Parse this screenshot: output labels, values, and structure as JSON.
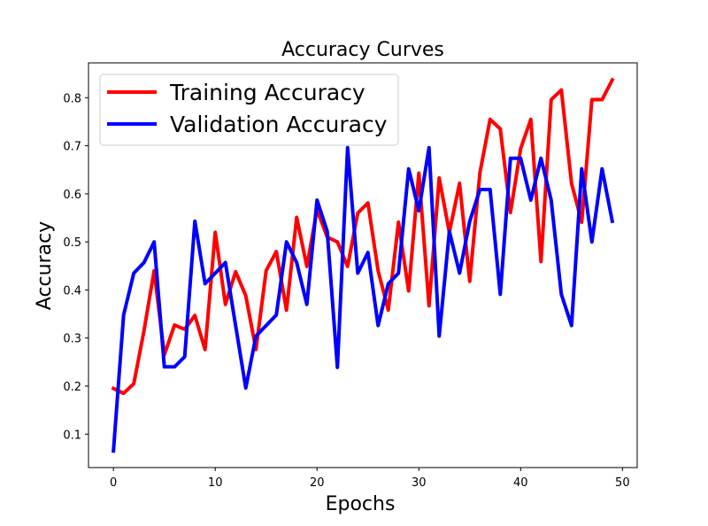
{
  "chart_data": {
    "type": "line",
    "title": "Accuracy Curves",
    "xlabel": "Epochs",
    "ylabel": "Accuracy",
    "xlim": [
      -2.45,
      51.45
    ],
    "ylim": [
      0.0305,
      0.8725
    ],
    "xticks": [
      0,
      10,
      20,
      30,
      40,
      50
    ],
    "yticks": [
      0.1,
      0.2,
      0.3,
      0.4,
      0.5,
      0.6,
      0.7,
      0.8
    ],
    "xtick_labels": [
      "0",
      "10",
      "20",
      "30",
      "40",
      "50"
    ],
    "ytick_labels": [
      "0.1",
      "0.2",
      "0.3",
      "0.4",
      "0.5",
      "0.6",
      "0.7",
      "0.8"
    ],
    "grid": false,
    "legend_position": "top-left",
    "x": [
      0,
      1,
      2,
      3,
      4,
      5,
      6,
      7,
      8,
      9,
      10,
      11,
      12,
      13,
      14,
      15,
      16,
      17,
      18,
      19,
      20,
      21,
      22,
      23,
      24,
      25,
      26,
      27,
      28,
      29,
      30,
      31,
      32,
      33,
      34,
      35,
      36,
      37,
      38,
      39,
      40,
      41,
      42,
      43,
      44,
      45,
      46,
      47,
      48,
      49
    ],
    "series": [
      {
        "name": "Training Accuracy",
        "color": "#ff0000",
        "values": [
          0.195,
          0.185,
          0.205,
          0.315,
          0.44,
          0.265,
          0.327,
          0.318,
          0.347,
          0.276,
          0.52,
          0.37,
          0.438,
          0.388,
          0.276,
          0.44,
          0.48,
          0.358,
          0.551,
          0.449,
          0.567,
          0.51,
          0.5,
          0.449,
          0.56,
          0.581,
          0.44,
          0.358,
          0.541,
          0.398,
          0.643,
          0.367,
          0.633,
          0.52,
          0.622,
          0.418,
          0.644,
          0.755,
          0.735,
          0.561,
          0.694,
          0.755,
          0.459,
          0.796,
          0.816,
          0.622,
          0.541,
          0.796,
          0.796,
          0.837
        ]
      },
      {
        "name": "Validation Accuracy",
        "color": "#0000ff",
        "values": [
          0.065,
          0.348,
          0.435,
          0.457,
          0.5,
          0.24,
          0.24,
          0.261,
          0.543,
          0.413,
          0.435,
          0.457,
          0.326,
          0.196,
          0.304,
          0.326,
          0.348,
          0.5,
          0.457,
          0.37,
          0.587,
          0.522,
          0.239,
          0.696,
          0.435,
          0.478,
          0.326,
          0.413,
          0.435,
          0.652,
          0.565,
          0.696,
          0.304,
          0.522,
          0.435,
          0.543,
          0.609,
          0.609,
          0.391,
          0.674,
          0.674,
          0.587,
          0.674,
          0.587,
          0.391,
          0.326,
          0.652,
          0.5,
          0.652,
          0.543
        ]
      }
    ]
  }
}
